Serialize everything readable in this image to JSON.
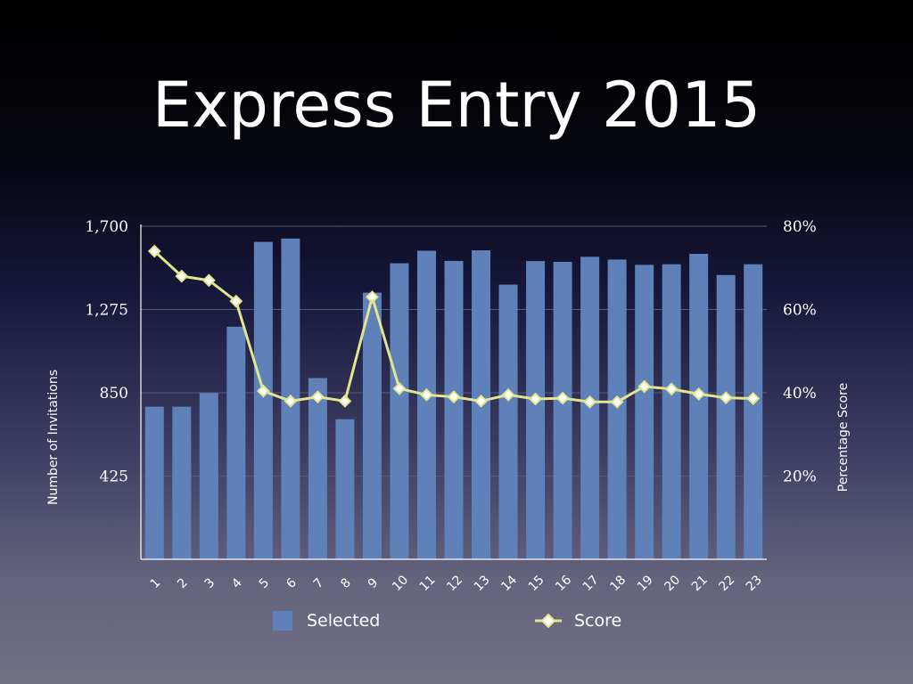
{
  "slide": {
    "title": "Express Entry 2015"
  },
  "colors": {
    "bar": "#5d81b8",
    "line": "#e2e48e",
    "marker_fill": "#ffffff",
    "axis": "#ffffff",
    "grid": "#5a5a6e"
  },
  "chart_data": {
    "type": "bar",
    "title": "",
    "categories": [
      "1",
      "2",
      "3",
      "4",
      "5",
      "6",
      "7",
      "8",
      "9",
      "10",
      "11",
      "12",
      "13",
      "14",
      "15",
      "16",
      "17",
      "18",
      "19",
      "20",
      "21",
      "22",
      "23"
    ],
    "series": [
      {
        "name": "Selected",
        "type": "bar",
        "axis": "left",
        "values": [
          779,
          779,
          849,
          1187,
          1620,
          1637,
          925,
          715,
          1361,
          1511,
          1575,
          1523,
          1577,
          1402,
          1522,
          1518,
          1544,
          1530,
          1503,
          1506,
          1559,
          1451,
          1506
        ]
      },
      {
        "name": "Score",
        "type": "line",
        "axis": "right",
        "values": [
          74,
          68,
          67,
          62,
          40.4,
          38,
          39,
          38,
          63,
          41,
          39.5,
          39,
          38,
          39.5,
          38.5,
          38.7,
          37.8,
          37.8,
          41.5,
          40.9,
          39.7,
          38.8,
          38.6
        ]
      }
    ],
    "ylabel_left": "Number of Invitations",
    "ylabel_right": "Percentage Score",
    "xlabel": "",
    "ylim_left": [
      0,
      1700
    ],
    "ylim_right": [
      0,
      80
    ],
    "yticks_left": [
      "425",
      "850",
      "1,275",
      "1,700"
    ],
    "yticks_right": [
      "20%",
      "40%",
      "60%",
      "80%"
    ],
    "grid": true,
    "legend_position": "bottom"
  }
}
